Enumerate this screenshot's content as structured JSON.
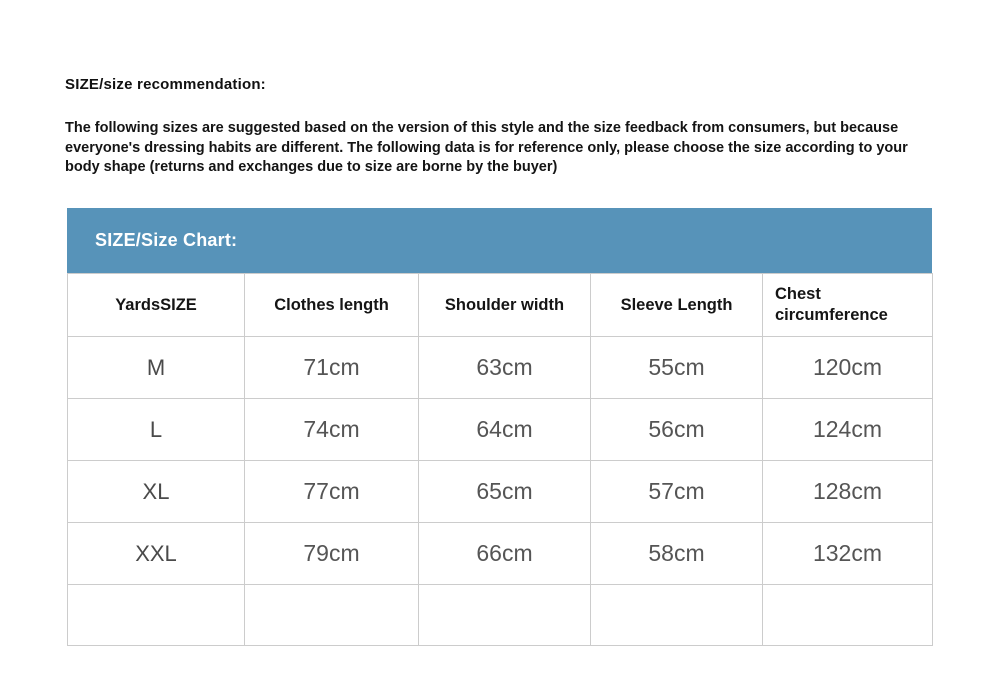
{
  "recommendation": {
    "title": "SIZE/size recommendation:",
    "body": "The following sizes are suggested based on the version of this style and the size feedback from consumers, but because everyone's dressing habits are different. The following data is for reference only, please choose the size according to your body shape (returns and exchanges due to size are borne by the buyer)"
  },
  "size_chart": {
    "title": "SIZE/Size Chart:",
    "header_bg_color": "#5793b9",
    "border_color": "#cccccc",
    "columns": [
      "YardsSIZE",
      "Clothes length",
      "Shoulder width",
      "Sleeve Length",
      "Chest circumference"
    ],
    "rows": [
      [
        "M",
        "71cm",
        "63cm",
        "55cm",
        "120cm"
      ],
      [
        "L",
        "74cm",
        "64cm",
        "56cm",
        "124cm"
      ],
      [
        "XL",
        "77cm",
        "65cm",
        "57cm",
        "128cm"
      ],
      [
        "XXL",
        "79cm",
        "66cm",
        "58cm",
        "132cm"
      ],
      [
        "",
        "",
        "",
        "",
        ""
      ]
    ]
  },
  "chart_data": {
    "type": "table",
    "title": "SIZE/Size Chart:",
    "columns": [
      "YardsSIZE",
      "Clothes length",
      "Shoulder width",
      "Sleeve Length",
      "Chest circumference"
    ],
    "rows": [
      [
        "M",
        "71cm",
        "63cm",
        "55cm",
        "120cm"
      ],
      [
        "L",
        "74cm",
        "64cm",
        "56cm",
        "124cm"
      ],
      [
        "XL",
        "77cm",
        "65cm",
        "57cm",
        "128cm"
      ],
      [
        "XXL",
        "79cm",
        "66cm",
        "58cm",
        "132cm"
      ]
    ]
  }
}
